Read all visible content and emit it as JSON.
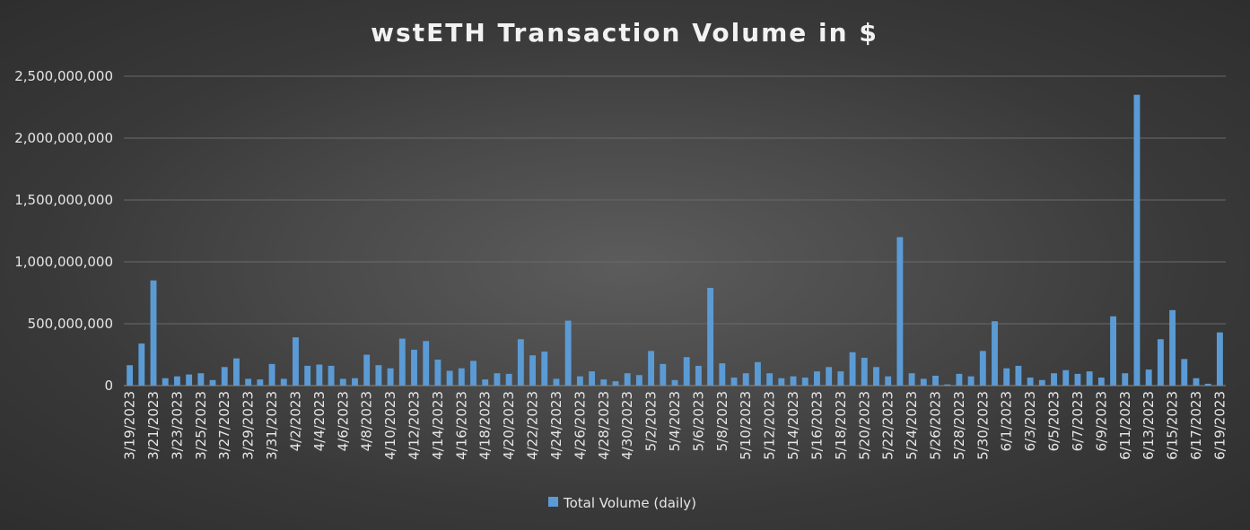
{
  "chart_data": {
    "type": "bar",
    "title": "wstETH Transaction Volume in $",
    "xlabel": "",
    "ylabel": "",
    "ylim": [
      0,
      2500000000
    ],
    "yticks": [
      0,
      500000000,
      1000000000,
      1500000000,
      2000000000,
      2500000000
    ],
    "ytick_labels": [
      "0",
      "500,000,000",
      "1,000,000,000",
      "1,500,000,000",
      "2,000,000,000",
      "2,500,000,000"
    ],
    "grid": true,
    "legend_position": "bottom",
    "bar_color": "#5b9bd5",
    "x_tick_labels": [
      "3/19/2023",
      "3/21/2023",
      "3/23/2023",
      "3/25/2023",
      "3/27/2023",
      "3/29/2023",
      "3/31/2023",
      "4/2/2023",
      "4/4/2023",
      "4/6/2023",
      "4/8/2023",
      "4/10/2023",
      "4/12/2023",
      "4/14/2023",
      "4/16/2023",
      "4/18/2023",
      "4/20/2023",
      "4/22/2023",
      "4/24/2023",
      "4/26/2023",
      "4/28/2023",
      "4/30/2023",
      "5/2/2023",
      "5/4/2023",
      "5/6/2023",
      "5/8/2023",
      "5/10/2023",
      "5/12/2023",
      "5/14/2023",
      "5/16/2023",
      "5/18/2023",
      "5/20/2023",
      "5/22/2023",
      "5/24/2023",
      "5/26/2023",
      "5/28/2023",
      "5/30/2023",
      "6/1/2023",
      "6/3/2023",
      "6/5/2023",
      "6/7/2023",
      "6/9/2023",
      "6/11/2023",
      "6/13/2023",
      "6/15/2023",
      "6/17/2023",
      "6/19/2023"
    ],
    "categories": [
      "3/19/2023",
      "3/20/2023",
      "3/21/2023",
      "3/22/2023",
      "3/23/2023",
      "3/24/2023",
      "3/25/2023",
      "3/26/2023",
      "3/27/2023",
      "3/28/2023",
      "3/29/2023",
      "3/30/2023",
      "3/31/2023",
      "4/1/2023",
      "4/2/2023",
      "4/3/2023",
      "4/4/2023",
      "4/5/2023",
      "4/6/2023",
      "4/7/2023",
      "4/8/2023",
      "4/9/2023",
      "4/10/2023",
      "4/11/2023",
      "4/12/2023",
      "4/13/2023",
      "4/14/2023",
      "4/15/2023",
      "4/16/2023",
      "4/17/2023",
      "4/18/2023",
      "4/19/2023",
      "4/20/2023",
      "4/21/2023",
      "4/22/2023",
      "4/23/2023",
      "4/24/2023",
      "4/25/2023",
      "4/26/2023",
      "4/27/2023",
      "4/28/2023",
      "4/29/2023",
      "4/30/2023",
      "5/1/2023",
      "5/2/2023",
      "5/3/2023",
      "5/4/2023",
      "5/5/2023",
      "5/6/2023",
      "5/7/2023",
      "5/8/2023",
      "5/9/2023",
      "5/10/2023",
      "5/11/2023",
      "5/12/2023",
      "5/13/2023",
      "5/14/2023",
      "5/15/2023",
      "5/16/2023",
      "5/17/2023",
      "5/18/2023",
      "5/19/2023",
      "5/20/2023",
      "5/21/2023",
      "5/22/2023",
      "5/23/2023",
      "5/24/2023",
      "5/25/2023",
      "5/26/2023",
      "5/27/2023",
      "5/28/2023",
      "5/29/2023",
      "5/30/2023",
      "5/31/2023",
      "6/1/2023",
      "6/2/2023",
      "6/3/2023",
      "6/4/2023",
      "6/5/2023",
      "6/6/2023",
      "6/7/2023",
      "6/8/2023",
      "6/9/2023",
      "6/10/2023",
      "6/11/2023",
      "6/12/2023",
      "6/13/2023",
      "6/14/2023",
      "6/15/2023",
      "6/16/2023",
      "6/17/2023",
      "6/18/2023",
      "6/19/2023"
    ],
    "series": [
      {
        "name": "Total Volume (daily)",
        "values": [
          165000000,
          340000000,
          850000000,
          60000000,
          75000000,
          90000000,
          100000000,
          45000000,
          150000000,
          220000000,
          55000000,
          50000000,
          175000000,
          55000000,
          390000000,
          160000000,
          170000000,
          160000000,
          55000000,
          60000000,
          250000000,
          165000000,
          140000000,
          380000000,
          290000000,
          360000000,
          210000000,
          120000000,
          140000000,
          200000000,
          50000000,
          100000000,
          95000000,
          375000000,
          245000000,
          275000000,
          55000000,
          525000000,
          75000000,
          115000000,
          50000000,
          35000000,
          100000000,
          85000000,
          280000000,
          175000000,
          45000000,
          230000000,
          160000000,
          790000000,
          180000000,
          65000000,
          100000000,
          190000000,
          100000000,
          60000000,
          75000000,
          65000000,
          115000000,
          150000000,
          115000000,
          270000000,
          225000000,
          150000000,
          75000000,
          1200000000,
          100000000,
          55000000,
          80000000,
          10000000,
          95000000,
          75000000,
          280000000,
          520000000,
          140000000,
          160000000,
          65000000,
          45000000,
          100000000,
          125000000,
          95000000,
          115000000,
          65000000,
          560000000,
          100000000,
          2350000000,
          130000000,
          375000000,
          610000000,
          215000000,
          60000000,
          15000000,
          430000000
        ]
      }
    ]
  }
}
